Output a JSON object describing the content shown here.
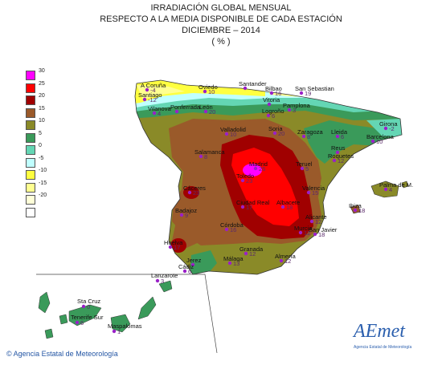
{
  "title": {
    "line1": "IRRADIACIÓN GLOBAL MENSUAL",
    "line2": "RESPECTO A LA MEDIA DISPONIBLE DE CADA ESTACIÓN",
    "line3": "DICIEMBRE – 2014",
    "line4": "( % )"
  },
  "legend": [
    {
      "label": "30",
      "color": "#ff00ff"
    },
    {
      "label": "25",
      "color": "#ff0000"
    },
    {
      "label": "20",
      "color": "#a00000"
    },
    {
      "label": "15",
      "color": "#9a5a2a"
    },
    {
      "label": "10",
      "color": "#8a8a28"
    },
    {
      "label": "5",
      "color": "#3a9a5a"
    },
    {
      "label": "0",
      "color": "#64d6b4"
    },
    {
      "label": "-5",
      "color": "#c0ffff"
    },
    {
      "label": "-10",
      "color": "#ffff40"
    },
    {
      "label": "-15",
      "color": "#ffff90"
    },
    {
      "label": "-20",
      "color": "#ffffd8"
    },
    {
      "label": "",
      "color": "#ffffff"
    }
  ],
  "stations": [
    {
      "name": "A Coruña",
      "value": "-4"
    },
    {
      "name": "Santiago",
      "value": "-12"
    },
    {
      "name": "Oviedo",
      "value": "10"
    },
    {
      "name": "Santander",
      "value": ""
    },
    {
      "name": "Bilbao",
      "value": "16"
    },
    {
      "name": "San Sebastian",
      "value": "19"
    },
    {
      "name": "Vitoria",
      "value": ""
    },
    {
      "name": "Pamplona",
      "value": "3"
    },
    {
      "name": "Logroño",
      "value": "6"
    },
    {
      "name": "Vilanova",
      "value": "4"
    },
    {
      "name": "Ponferrada",
      "value": ""
    },
    {
      "name": "León",
      "value": "20"
    },
    {
      "name": "Valladolid",
      "value": "10"
    },
    {
      "name": "Soria",
      "value": "20"
    },
    {
      "name": "Zaragoza",
      "value": "8"
    },
    {
      "name": "Lleida",
      "value": "6"
    },
    {
      "name": "Girona",
      "value": "-2"
    },
    {
      "name": "Barcelona",
      "value": "10"
    },
    {
      "name": "Reus",
      "value": ""
    },
    {
      "name": "Roquetes",
      "value": "12"
    },
    {
      "name": "Salamanca",
      "value": "8"
    },
    {
      "name": "Madrid",
      "value": "26"
    },
    {
      "name": "Toledo",
      "value": "23"
    },
    {
      "name": "Teruel",
      "value": "5"
    },
    {
      "name": "Valencia",
      "value": "15"
    },
    {
      "name": "Palma de M.",
      "value": "4"
    },
    {
      "name": "Ibiza",
      "value": "18"
    },
    {
      "name": "Cáceres",
      "value": "23"
    },
    {
      "name": "Badajoz",
      "value": "9"
    },
    {
      "name": "Ciudad Real",
      "value": "17"
    },
    {
      "name": "Albacete",
      "value": "18"
    },
    {
      "name": "Alicante",
      "value": "12"
    },
    {
      "name": "Murcia",
      "value": "12"
    },
    {
      "name": "San Javier",
      "value": "18"
    },
    {
      "name": "Córdoba",
      "value": "16"
    },
    {
      "name": "Huelva",
      "value": "17"
    },
    {
      "name": "Granada",
      "value": "12"
    },
    {
      "name": "Almería",
      "value": "12"
    },
    {
      "name": "Jerez",
      "value": ""
    },
    {
      "name": "Cádiz",
      "value": "6"
    },
    {
      "name": "Málaga",
      "value": "13"
    },
    {
      "name": "Lanzarote",
      "value": "3"
    },
    {
      "name": "Sta Cruz",
      "value": "0"
    },
    {
      "name": "Tenerife Sur",
      "value": "6"
    },
    {
      "name": "Maspalomas",
      "value": "1"
    }
  ],
  "credit": "Agencia Estatal de Meteorología",
  "logo": {
    "text": "AEmet",
    "subtitle": "Agencia Estatal de Meteorología"
  }
}
